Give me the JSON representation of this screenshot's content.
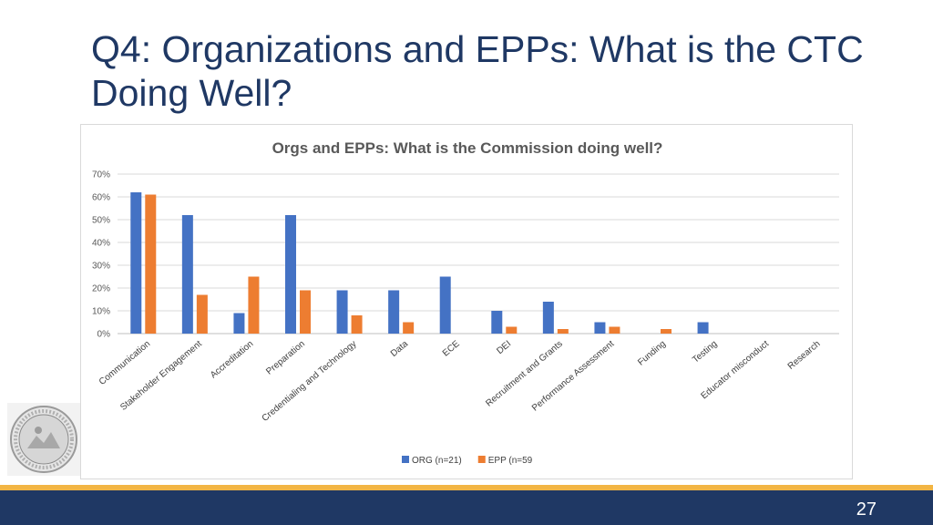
{
  "slide": {
    "title_line1": "Q4: Organizations and EPPs: What is the CTC",
    "title_line2": "Doing Well?",
    "page_number": "27",
    "colors": {
      "title": "#1f3864",
      "footer_bar": "#1f3864",
      "footer_stripe": "#f2b544"
    },
    "seal_icon": "state-seal-icon"
  },
  "chart_data": {
    "type": "bar",
    "title": "Orgs and EPPs:  What is the Commission doing well?",
    "categories": [
      "Communication",
      "Stakeholder Engagement",
      "Accreditation",
      "Preparation",
      "Credentialing and Technology",
      "Data",
      "ECE",
      "DEI",
      "Recruitment and Grants",
      "Performance Assessment",
      "Funding",
      "Testing",
      "Educator misconduct",
      "Research"
    ],
    "series": [
      {
        "name": "ORG (n=21)",
        "color": "#4472c4",
        "values": [
          62,
          52,
          9,
          52,
          19,
          19,
          25,
          10,
          14,
          5,
          0,
          5,
          0,
          0
        ]
      },
      {
        "name": "EPP (n=59",
        "color": "#ed7d31",
        "values": [
          61,
          17,
          25,
          19,
          8,
          5,
          0,
          3,
          2,
          3,
          2,
          0,
          0,
          0
        ]
      }
    ],
    "yticks": [
      "0%",
      "10%",
      "20%",
      "30%",
      "40%",
      "50%",
      "60%",
      "70%"
    ],
    "ylim": [
      0,
      70
    ],
    "grid": true,
    "legend_position": "bottom"
  }
}
